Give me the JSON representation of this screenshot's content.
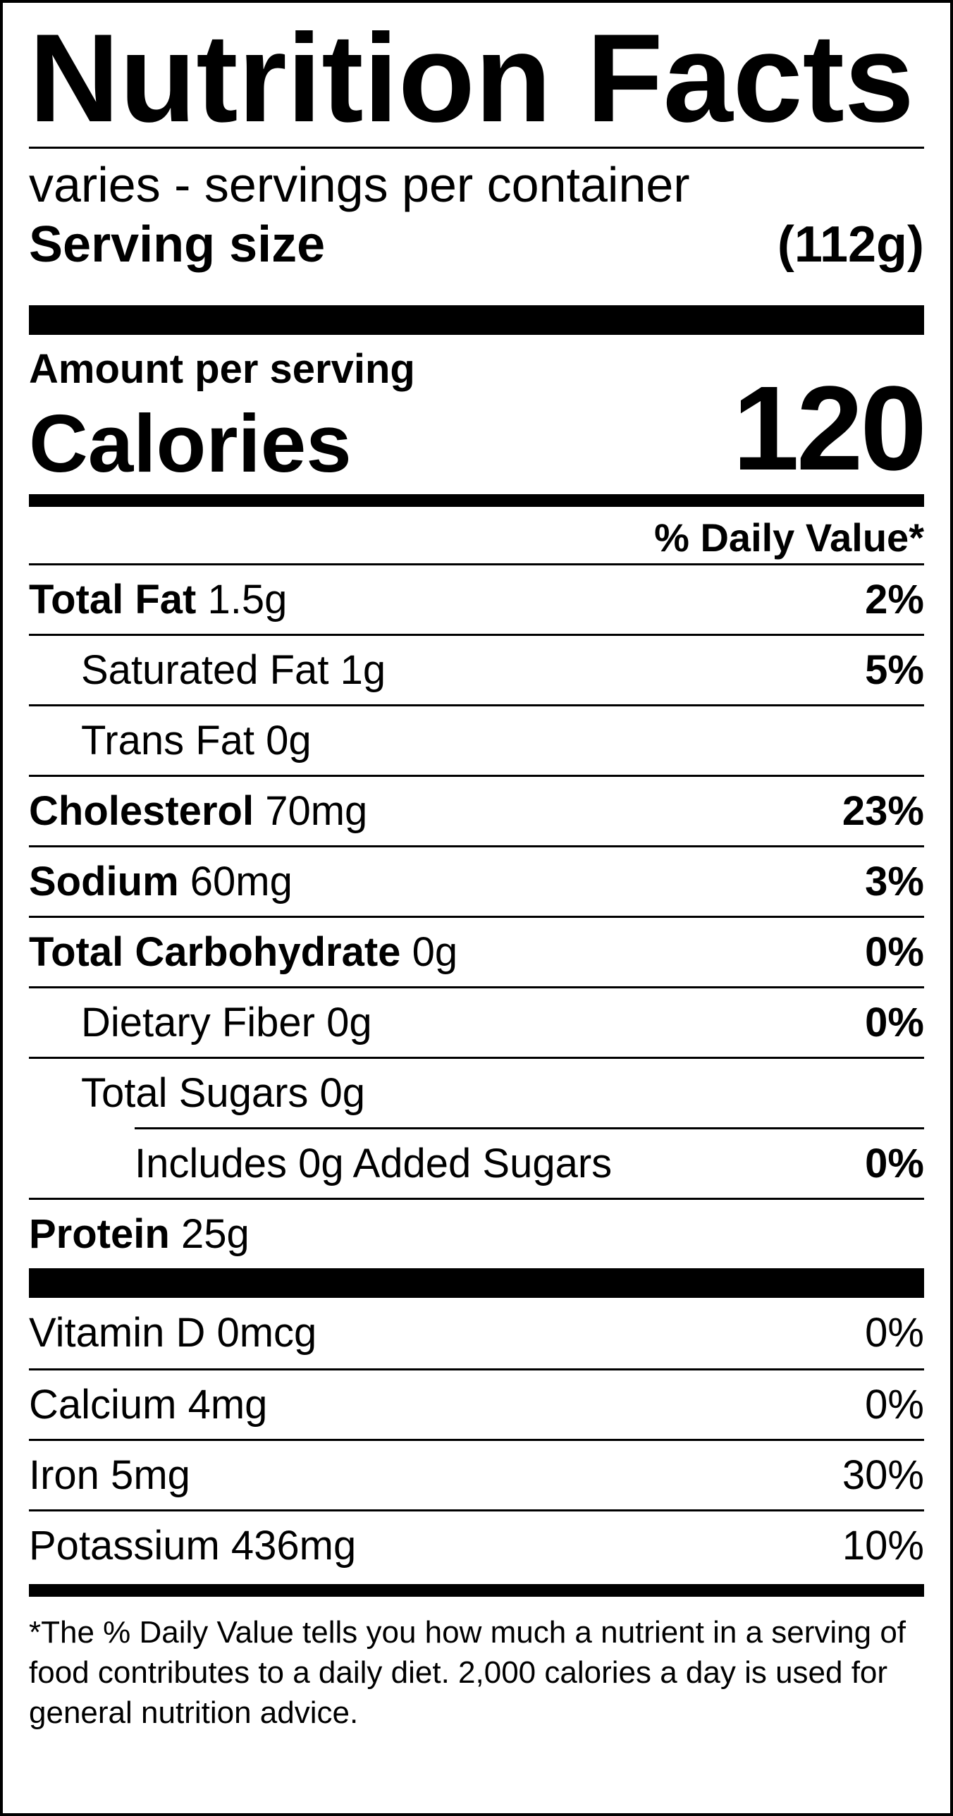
{
  "label": {
    "title": "Nutrition Facts",
    "servings_per_container": "varies -  servings per container",
    "serving_size_label": "Serving size",
    "serving_size_value": "(112g)",
    "amount_per_serving": "Amount per serving",
    "calories_label": "Calories",
    "calories_value": "120",
    "daily_value_header": "% Daily Value*"
  },
  "nutrients": [
    {
      "name": "Total Fat",
      "amount": "1.5g",
      "dv": "2%"
    },
    {
      "name": "Saturated Fat",
      "amount": "1g",
      "dv": "5%"
    },
    {
      "name": "Trans Fat",
      "amount": "0g",
      "dv": ""
    },
    {
      "name": "Cholesterol",
      "amount": "70mg",
      "dv": "23%"
    },
    {
      "name": "Sodium",
      "amount": "60mg",
      "dv": "3%"
    },
    {
      "name": "Total Carbohydrate",
      "amount": "0g",
      "dv": "0%"
    },
    {
      "name": "Dietary Fiber",
      "amount": "0g",
      "dv": "0%"
    },
    {
      "name": "Total Sugars",
      "amount": "0g",
      "dv": ""
    },
    {
      "name": "Includes 0g Added Sugars",
      "amount": "",
      "dv": "0%"
    },
    {
      "name": "Protein",
      "amount": "25g",
      "dv": ""
    }
  ],
  "vitamins": [
    {
      "name": "Vitamin D 0mcg",
      "dv": "0%"
    },
    {
      "name": "Calcium 4mg",
      "dv": "0%"
    },
    {
      "name": "Iron 5mg",
      "dv": "30%"
    },
    {
      "name": "Potassium 436mg",
      "dv": "10%"
    }
  ],
  "footnote": "*The % Daily Value tells you how much a nutrient in a serving of food contributes to a daily diet. 2,000 calories a day is used for general nutrition advice."
}
